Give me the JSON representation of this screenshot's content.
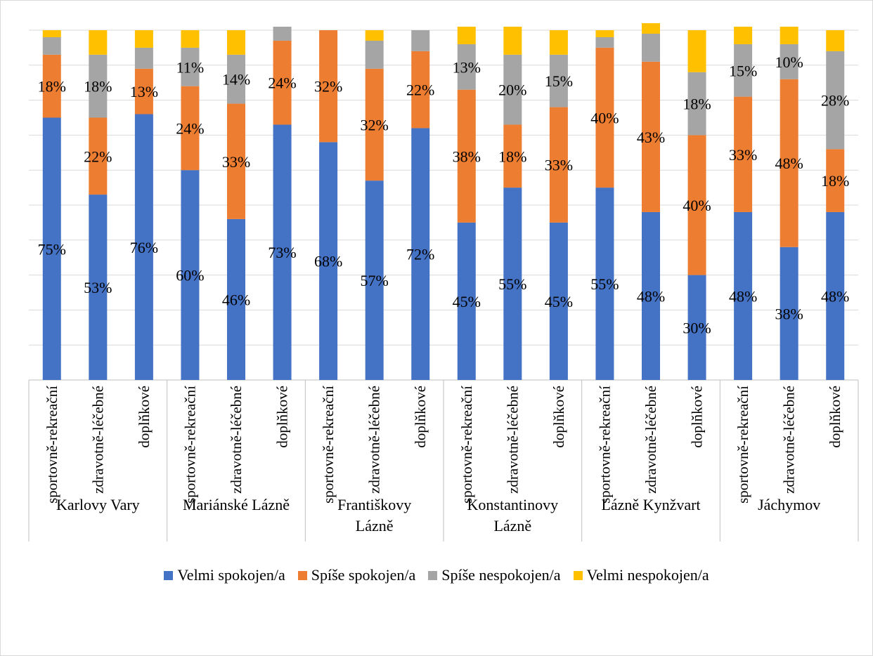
{
  "chart_data": {
    "type": "bar",
    "stacked": true,
    "percent_stacked": true,
    "grid": true,
    "legend_position": "bottom",
    "ylim": [
      0,
      100
    ],
    "groups": [
      "Karlovy Vary",
      "Mariánské Lázně",
      "Františkovy Lázně",
      "Konstantinovy Lázně",
      "Lázně Kynžvart",
      "Jáchymov"
    ],
    "subcategories": [
      "sportovně-rekreační",
      "zdravotně-léčebné",
      "doplňkové"
    ],
    "series": [
      {
        "name": "Velmi spokojen/a",
        "color": "#4472C4",
        "values": [
          75,
          53,
          76,
          60,
          46,
          73,
          68,
          57,
          72,
          45,
          55,
          45,
          55,
          48,
          30,
          48,
          38,
          48
        ]
      },
      {
        "name": "Spíše spokojen/a",
        "color": "#ED7D31",
        "values": [
          18,
          22,
          13,
          24,
          33,
          24,
          32,
          32,
          22,
          38,
          18,
          33,
          40,
          43,
          40,
          33,
          48,
          18
        ]
      },
      {
        "name": "Spíše nespokojen/a",
        "color": "#A5A5A5",
        "values": [
          5,
          18,
          6,
          11,
          14,
          4,
          0,
          8,
          6,
          13,
          20,
          15,
          3,
          8,
          18,
          15,
          10,
          28
        ]
      },
      {
        "name": "Velmi nespokojen/a",
        "color": "#FFC000",
        "values": [
          2,
          7,
          5,
          5,
          7,
          0,
          0,
          3,
          0,
          5,
          8,
          7,
          2,
          3,
          12,
          5,
          5,
          6
        ]
      }
    ],
    "data_labels": {
      "Velmi spokojen/a": [
        "75%",
        "53%",
        "76%",
        "60%",
        "46%",
        "73%",
        "68%",
        "57%",
        "72%",
        "45%",
        "55%",
        "45%",
        "55%",
        "48%",
        "30%",
        "48%",
        "38%",
        "48%"
      ],
      "Spíše spokojen/a": [
        "18%",
        "22%",
        "13%",
        "24%",
        "33%",
        "24%",
        "32%",
        "32%",
        "22%",
        "38%",
        "18%",
        "33%",
        "40%",
        "43%",
        "40%",
        "33%",
        "48%",
        "18%"
      ],
      "Spíše nespokojen/a": [
        "",
        "18%",
        "",
        "11%",
        "14%",
        "",
        "",
        "",
        "",
        "13%",
        "20%",
        "15%",
        "",
        "",
        "18%",
        "15%",
        "10%",
        "28%"
      ]
    }
  }
}
